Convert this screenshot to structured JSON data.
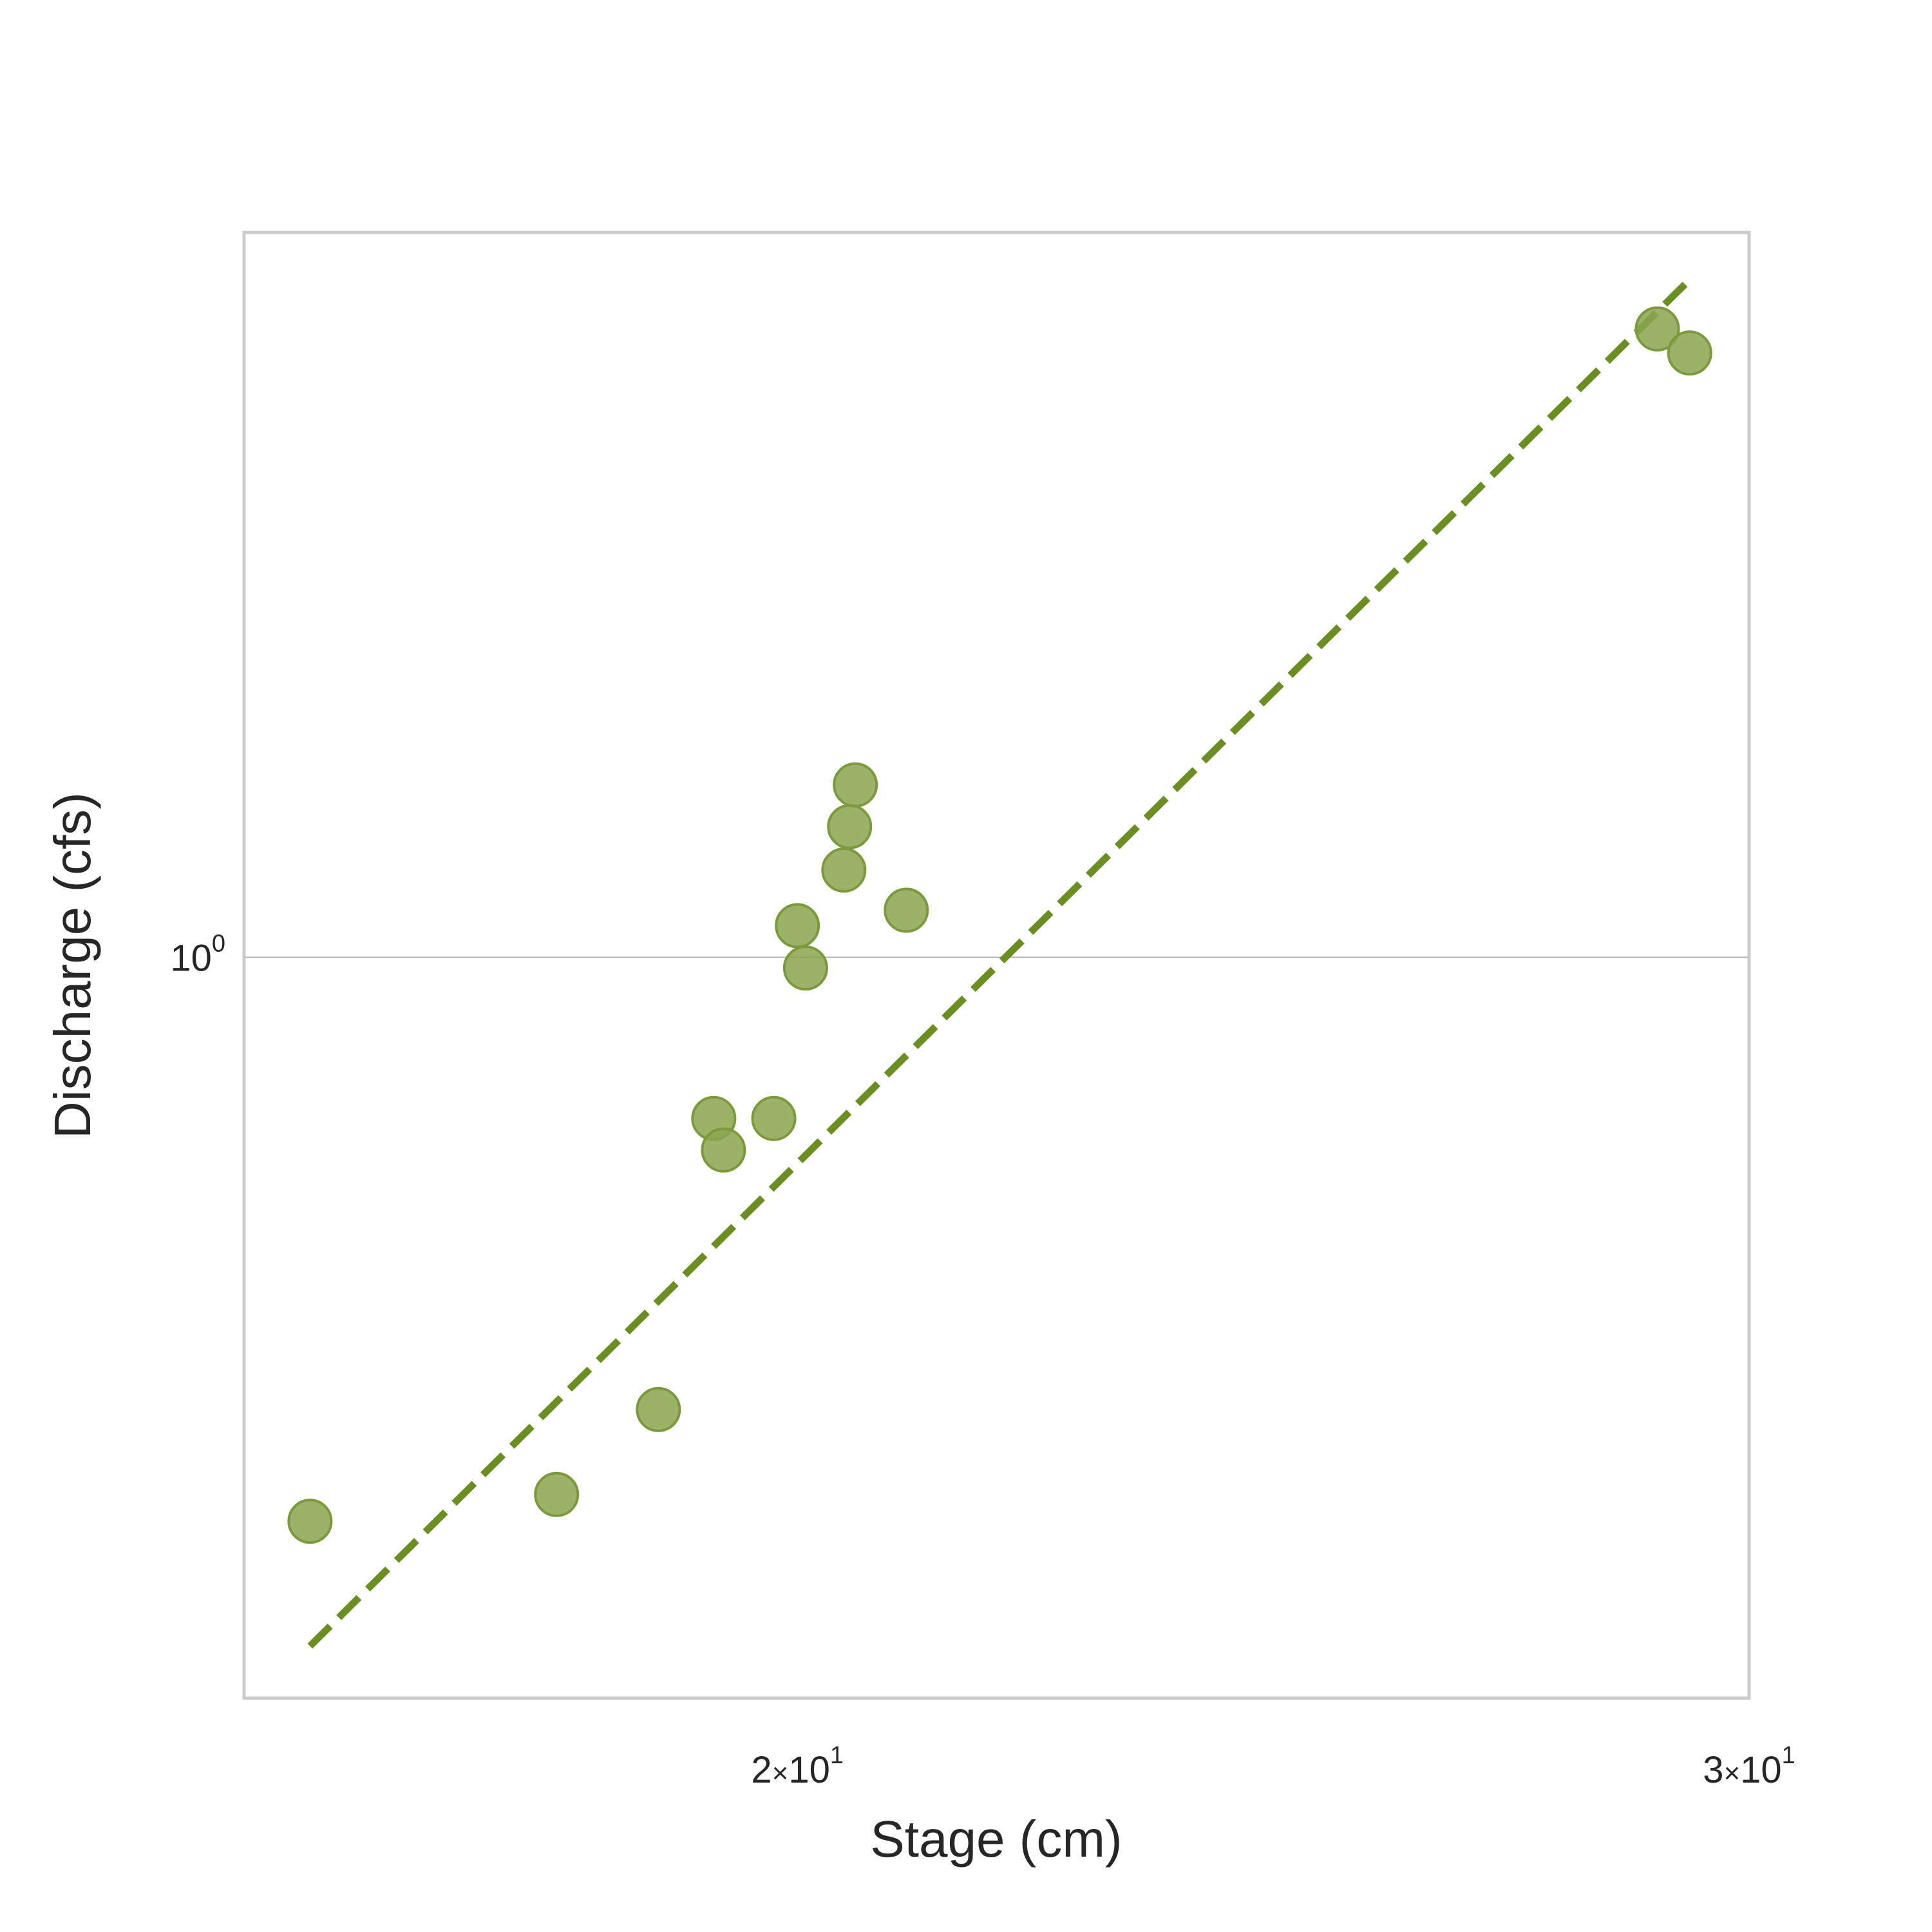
{
  "chart_data": {
    "type": "scatter",
    "title": "",
    "xlabel": "Stage (cm)",
    "ylabel": "Discharge (cfs)",
    "x_scale": "log",
    "y_scale": "log",
    "xlim": [
      15.8,
      30.0
    ],
    "ylim": [
      0.5,
      1.97
    ],
    "grid": "horizontal major lines only",
    "x_ticks": [
      {
        "value": 20,
        "mantissa": "2",
        "times": "×",
        "base": "10",
        "exp": "1"
      },
      {
        "value": 30,
        "mantissa": "3",
        "times": "×",
        "base": "10",
        "exp": "1"
      }
    ],
    "y_ticks": [
      {
        "value": 1,
        "base": "10",
        "exp": "0"
      }
    ],
    "points": [
      {
        "x": 16.25,
        "y": 0.59
      },
      {
        "x": 18.05,
        "y": 0.605
      },
      {
        "x": 18.85,
        "y": 0.655
      },
      {
        "x": 19.3,
        "y": 0.86
      },
      {
        "x": 19.38,
        "y": 0.835
      },
      {
        "x": 19.8,
        "y": 0.86
      },
      {
        "x": 20.0,
        "y": 1.03
      },
      {
        "x": 20.07,
        "y": 0.99
      },
      {
        "x": 20.4,
        "y": 1.085
      },
      {
        "x": 20.45,
        "y": 1.13
      },
      {
        "x": 20.5,
        "y": 1.175
      },
      {
        "x": 20.95,
        "y": 1.045
      },
      {
        "x": 28.85,
        "y": 1.8
      },
      {
        "x": 29.25,
        "y": 1.76
      }
    ],
    "trendline": {
      "style": "dashed",
      "points": [
        {
          "x": 16.25,
          "y": 0.525
        },
        {
          "x": 29.25,
          "y": 1.885
        }
      ]
    },
    "colors": {
      "point_fill": "#8aa64f",
      "point_stroke": "#7a9a3c",
      "trendline": "#6b8e23",
      "frame": "#cccccc",
      "grid": "#b0b0b0"
    }
  }
}
